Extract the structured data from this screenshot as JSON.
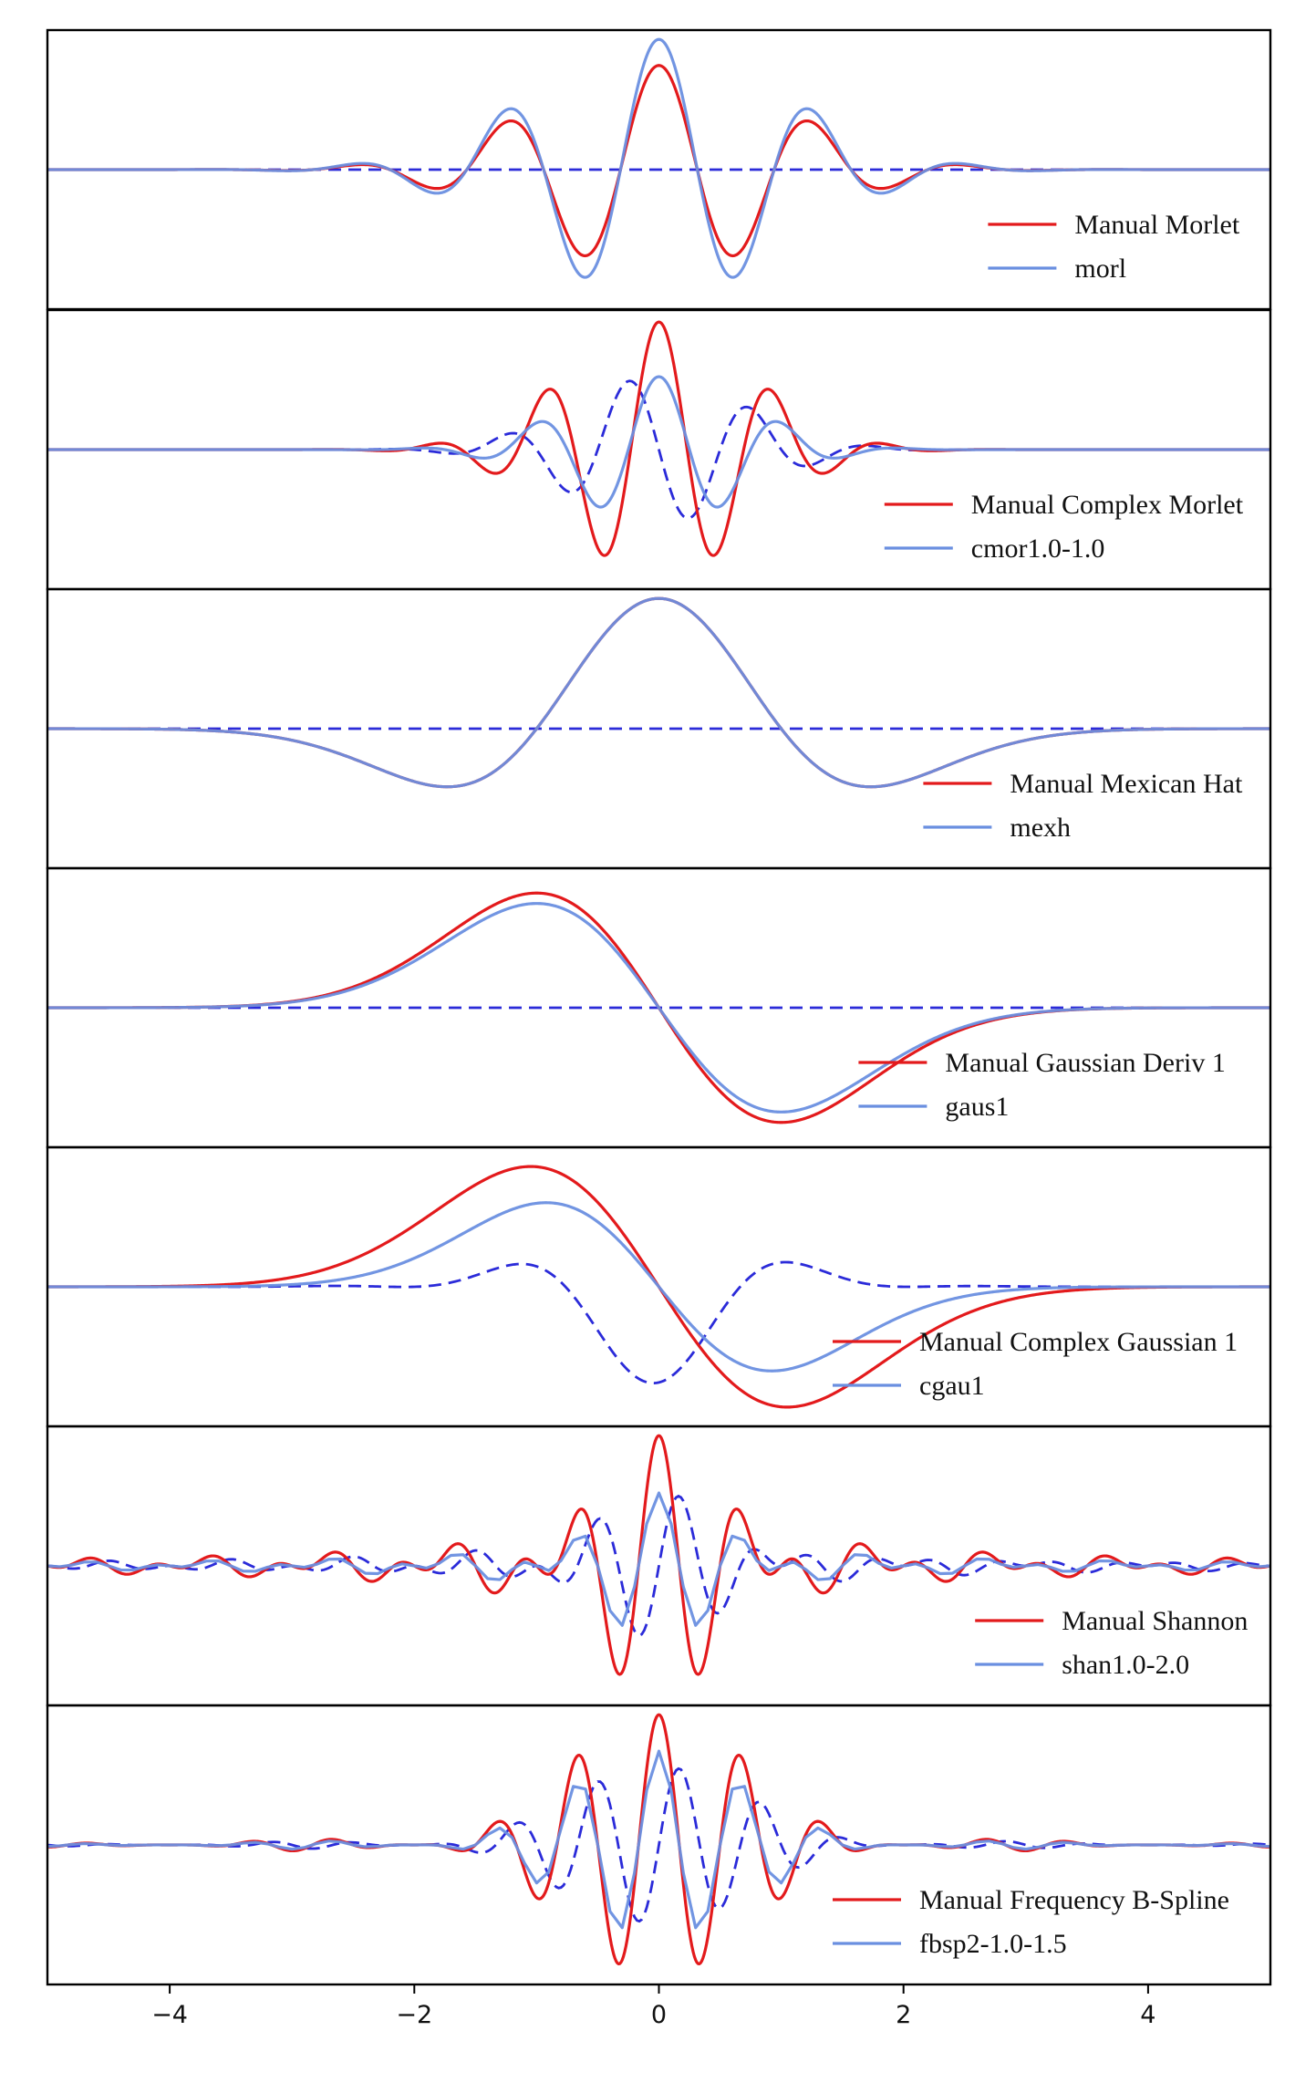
{
  "chart_data": {
    "type": "line",
    "xlim": [
      -5,
      5
    ],
    "x_ticks": [
      -4,
      -2,
      0,
      2,
      4
    ],
    "x_tick_labels": [
      "−4",
      "−2",
      "0",
      "2",
      "4"
    ],
    "shared_x_axis": true,
    "y_ticks_visible": false,
    "grid": false,
    "legend_placement": "bottom-right",
    "colors": {
      "manual": "#e31a1c",
      "library": "#6a8fe0",
      "imaginary": "#2b2bd9"
    },
    "panels": [
      {
        "kind": "morlet",
        "legend": [
          "Manual Morlet",
          "morl"
        ],
        "series": [
          {
            "name": "Manual Morlet",
            "style": "solid",
            "role": "manual",
            "peak": 0.8
          },
          {
            "name": "morl",
            "style": "solid",
            "role": "library",
            "peak": 1.0
          }
        ],
        "imaginary_dashed": "flat at 0",
        "ylim": [
          -1.05,
          1.05
        ]
      },
      {
        "kind": "complex-morlet",
        "legend": [
          "Manual Complex Morlet",
          "cmor1.0-1.0"
        ],
        "series": [
          {
            "name": "Manual Complex Morlet",
            "style": "solid",
            "role": "manual",
            "peak": 0.98
          },
          {
            "name": "cmor1.0-1.0",
            "style": "solid",
            "role": "library",
            "peak": 0.56
          }
        ],
        "imaginary_dashed": "quadrature component",
        "ylim": [
          -1.05,
          1.05
        ]
      },
      {
        "kind": "mexican-hat",
        "legend": [
          "Manual Mexican Hat",
          "mexh"
        ],
        "series": [
          {
            "name": "Manual Mexican Hat",
            "style": "solid",
            "role": "manual",
            "peak": 1.0
          },
          {
            "name": "mexh",
            "style": "solid",
            "role": "library",
            "peak": 1.0
          }
        ],
        "imaginary_dashed": "flat at 0",
        "ylim": [
          -1.05,
          1.05
        ]
      },
      {
        "kind": "gaussian-deriv-1",
        "legend": [
          "Manual Gaussian Deriv 1",
          "gaus1"
        ],
        "series": [
          {
            "name": "Manual Gaussian Deriv 1",
            "style": "solid",
            "role": "manual",
            "peak": 0.88
          },
          {
            "name": "gaus1",
            "style": "solid",
            "role": "library",
            "peak": 0.8
          }
        ],
        "imaginary_dashed": "flat at 0",
        "ylim": [
          -1.05,
          1.05
        ]
      },
      {
        "kind": "complex-gaussian-1",
        "legend": [
          "Manual Complex Gaussian 1",
          "cgau1"
        ],
        "series": [
          {
            "name": "Manual Complex Gaussian 1",
            "style": "solid",
            "role": "manual",
            "peak": 0.88
          },
          {
            "name": "cgau1",
            "style": "solid",
            "role": "library",
            "peak": 0.7
          }
        ],
        "imaginary_dashed": "quadrature component",
        "ylim": [
          -1.05,
          1.05
        ]
      },
      {
        "kind": "shannon",
        "legend": [
          "Manual Shannon",
          "shan1.0-2.0"
        ],
        "series": [
          {
            "name": "Manual Shannon",
            "style": "solid",
            "role": "manual",
            "peak": 1.0
          },
          {
            "name": "shan1.0-2.0",
            "style": "solid",
            "role": "library",
            "peak": 0.56
          }
        ],
        "imaginary_dashed": "quadrature component",
        "ylim": [
          -1.05,
          1.05
        ]
      },
      {
        "kind": "frequency-b-spline",
        "legend": [
          "Manual Frequency B-Spline",
          "fbsp2-1.0-1.5"
        ],
        "series": [
          {
            "name": "Manual Frequency B-Spline",
            "style": "solid",
            "role": "manual",
            "peak": 1.0
          },
          {
            "name": "fbsp2-1.0-1.5",
            "style": "solid",
            "role": "library",
            "peak": 0.72
          }
        ],
        "imaginary_dashed": "quadrature component",
        "ylim": [
          -1.05,
          1.05
        ]
      }
    ]
  }
}
